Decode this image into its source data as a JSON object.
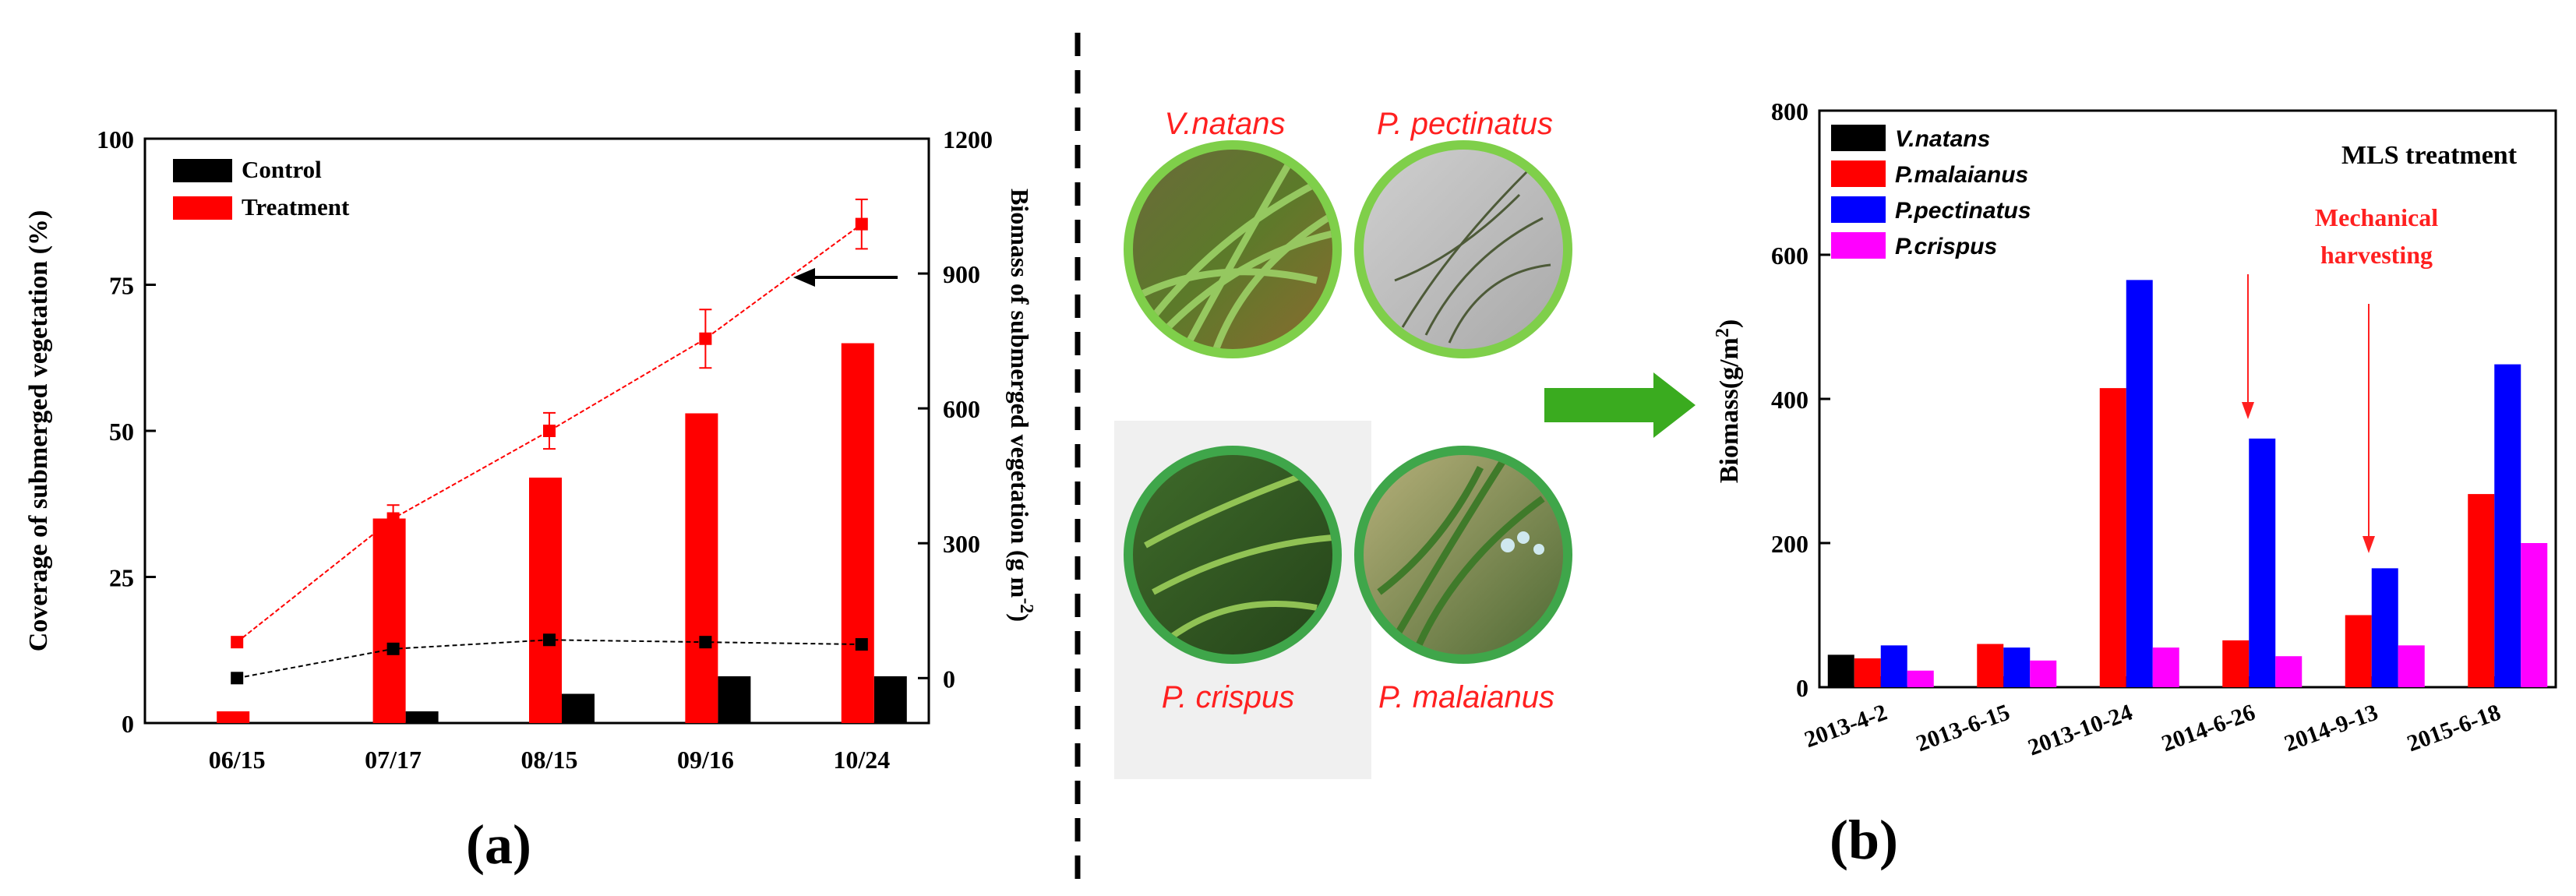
{
  "panel_a": {
    "panel_label": "(a)",
    "legend": [
      "Control",
      "Treatment"
    ],
    "arrow_label": "",
    "chart_data": {
      "type": "bar+line",
      "categories": [
        "06/15",
        "07/17",
        "08/15",
        "09/16",
        "10/24"
      ],
      "ylabel": "Coverage of submerged vegetation (%)",
      "y2label": "Biomass of submerged vegetation (g m",
      "y2label_sup": "-2",
      "y2label_close": ")",
      "ylim": [
        0,
        100
      ],
      "y2lim": [
        -100,
        1200
      ],
      "yticks": [
        "0",
        "25",
        "50",
        "75",
        "100"
      ],
      "y2ticks": [
        "0",
        "300",
        "600",
        "900",
        "1200"
      ],
      "bars": [
        {
          "name": "Control",
          "color": "#000000",
          "values": [
            0,
            2,
            5,
            8,
            8
          ]
        },
        {
          "name": "Treatment",
          "color": "#ff0000",
          "values": [
            2,
            35,
            42,
            53,
            65
          ]
        }
      ],
      "lines": [
        {
          "name": "Control",
          "color": "#000000",
          "values": [
            0,
            65,
            85,
            80,
            75
          ],
          "err": [
            0,
            0,
            0,
            0,
            0
          ]
        },
        {
          "name": "Treatment",
          "color": "#ff0000",
          "values": [
            80,
            355,
            550,
            755,
            1010
          ],
          "err": [
            0,
            30,
            40,
            65,
            55
          ]
        }
      ]
    }
  },
  "photos": {
    "labels": [
      "V.natans",
      "P. pectinatus",
      "P. crispus",
      "P. malaianus"
    ]
  },
  "panel_b": {
    "panel_label": "(b)",
    "treatment_title": "MLS treatment",
    "annotation_line1": "Mechanical",
    "annotation_line2": "harvesting",
    "chart_data": {
      "type": "bar",
      "categories": [
        "2013-4-2",
        "2013-6-15",
        "2013-10-24",
        "2014-6-26",
        "2014-9-13",
        "2015-6-18"
      ],
      "ylabel": "Biomass(g/m",
      "ylabel_sup": "2",
      "ylabel_close": ")",
      "ylim": [
        0,
        800
      ],
      "yticks": [
        "0",
        "200",
        "400",
        "600",
        "800"
      ],
      "series": [
        {
          "name": "V.natans",
          "color": "#000000",
          "values": [
            45,
            0,
            0,
            0,
            0,
            0
          ]
        },
        {
          "name": "P.malaianus",
          "color": "#ff0000",
          "values": [
            40,
            60,
            415,
            65,
            100,
            268
          ]
        },
        {
          "name": "P.pectinatus",
          "color": "#0000ff",
          "values": [
            58,
            55,
            565,
            345,
            165,
            448
          ]
        },
        {
          "name": "P.crispus",
          "color": "#ff00ff",
          "values": [
            23,
            37,
            55,
            43,
            58,
            200
          ]
        }
      ]
    }
  }
}
